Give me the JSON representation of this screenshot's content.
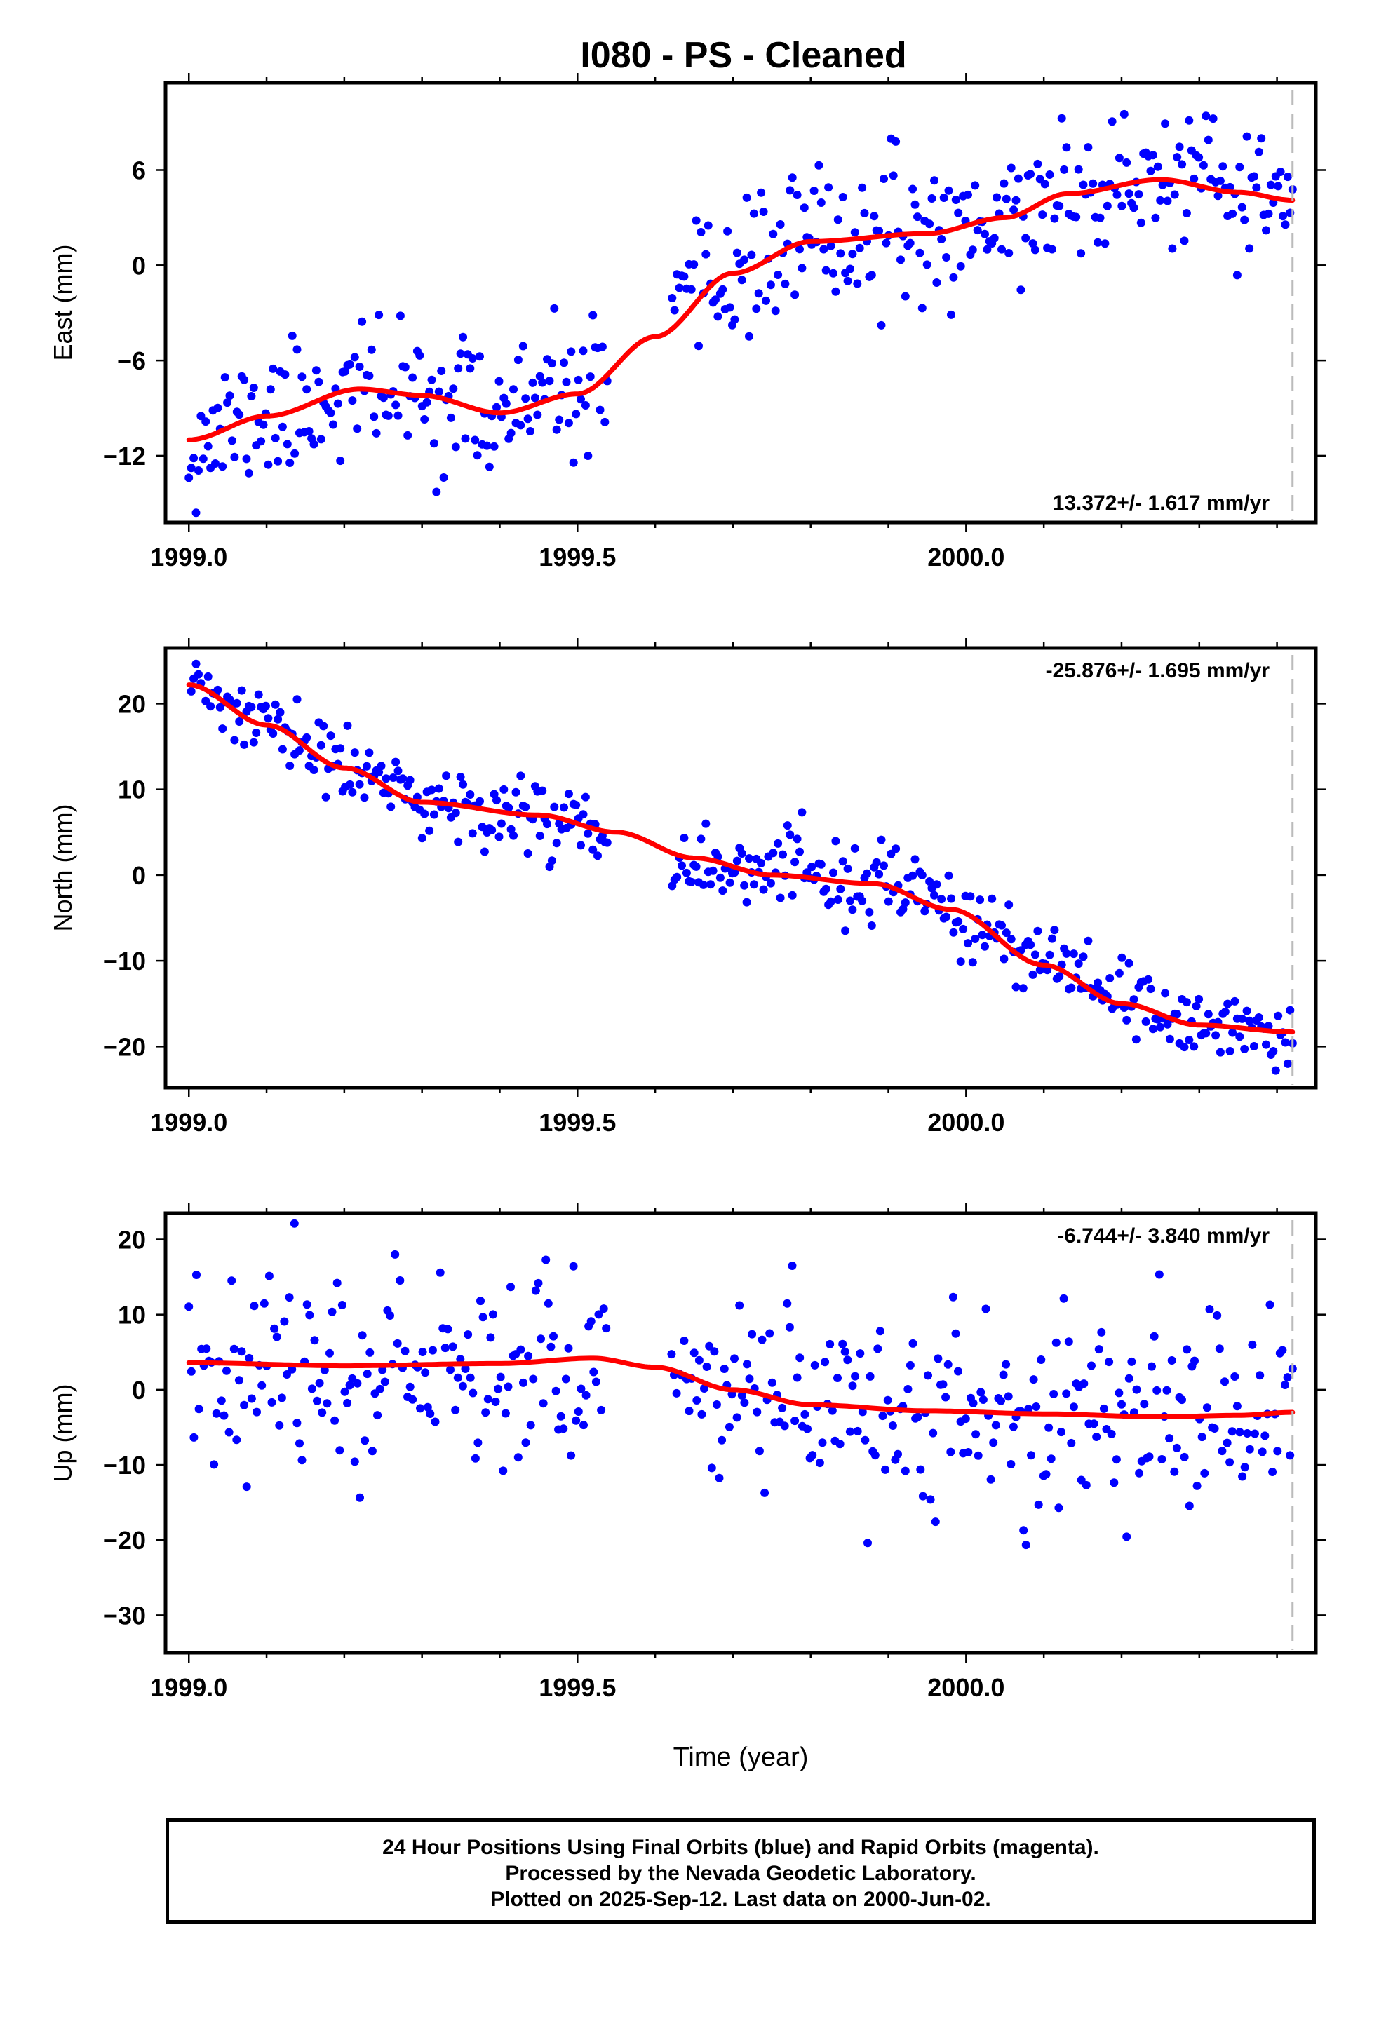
{
  "title": "I080  - PS - Cleaned",
  "x_axis_label": "Time (year)",
  "caption": [
    "24 Hour Positions Using Final Orbits (blue) and Rapid Orbits (magenta).",
    "Processed by the Nevada Geodetic Laboratory.",
    "Plotted on 2025-Sep-12. Last data on 2000-Jun-02."
  ],
  "colors": {
    "final_orbits": "#0000ff",
    "fit": "#ff0000",
    "last_data_marker": "#bbbbbb"
  },
  "chart_data": [
    {
      "type": "scatter",
      "ylabel": "East (mm)",
      "rate_label": "13.372+/- 1.617 mm/yr",
      "rate_position": "bottom-right",
      "xlim": [
        1998.97,
        2000.45
      ],
      "ylim": [
        -16.2,
        11.5
      ],
      "xticks": [
        1999.0,
        1999.5,
        2000.0
      ],
      "xtick_labels": [
        "1999.0",
        "1999.5",
        "2000.0"
      ],
      "yticks": [
        6,
        0,
        -6,
        -12
      ],
      "ytick_labels": [
        "6",
        "0",
        "−6",
        "−12"
      ],
      "last_data": 2000.42,
      "trend_knots": [
        [
          1999.0,
          -11.0
        ],
        [
          1999.1,
          -9.5
        ],
        [
          1999.22,
          -7.8
        ],
        [
          1999.3,
          -8.2
        ],
        [
          1999.4,
          -9.3
        ],
        [
          1999.5,
          -8.1
        ],
        [
          1999.6,
          -4.5
        ],
        [
          1999.7,
          -0.5
        ],
        [
          1999.8,
          1.5
        ],
        [
          1999.95,
          2.0
        ],
        [
          2000.05,
          3.0
        ],
        [
          2000.13,
          4.5
        ],
        [
          2000.25,
          5.4
        ],
        [
          2000.35,
          4.6
        ],
        [
          2000.42,
          4.1
        ]
      ],
      "scatter_sd": 2.1,
      "gaps": [
        [
          1999.54,
          1999.62
        ]
      ],
      "n_points": 460,
      "seed": 11
    },
    {
      "type": "scatter",
      "ylabel": "North (mm)",
      "rate_label": "-25.876+/- 1.695 mm/yr",
      "rate_position": "top-right",
      "xlim": [
        1998.97,
        2000.45
      ],
      "ylim": [
        -24.8,
        26.5
      ],
      "xticks": [
        1999.0,
        1999.5,
        2000.0
      ],
      "xtick_labels": [
        "1999.0",
        "1999.5",
        "2000.0"
      ],
      "yticks": [
        20,
        10,
        0,
        -10,
        -20
      ],
      "ytick_labels": [
        "20",
        "10",
        "0",
        "−10",
        "−20"
      ],
      "last_data": 2000.42,
      "trend_knots": [
        [
          1999.0,
          22.2
        ],
        [
          1999.1,
          17.5
        ],
        [
          1999.2,
          12.5
        ],
        [
          1999.3,
          8.5
        ],
        [
          1999.45,
          7.0
        ],
        [
          1999.55,
          5.0
        ],
        [
          1999.65,
          2.0
        ],
        [
          1999.75,
          0.0
        ],
        [
          1999.88,
          -1.0
        ],
        [
          1999.98,
          -4.0
        ],
        [
          2000.1,
          -10.5
        ],
        [
          2000.2,
          -15.0
        ],
        [
          2000.3,
          -17.5
        ],
        [
          2000.42,
          -18.3
        ]
      ],
      "scatter_sd": 2.3,
      "gaps": [
        [
          1999.54,
          1999.62
        ]
      ],
      "n_points": 460,
      "seed": 23
    },
    {
      "type": "scatter",
      "ylabel": "Up (mm)",
      "rate_label": "-6.744+/- 3.840 mm/yr",
      "rate_position": "top-right",
      "xlim": [
        1998.97,
        2000.45
      ],
      "ylim": [
        -35,
        23.5
      ],
      "xticks": [
        1999.0,
        1999.5,
        2000.0
      ],
      "xtick_labels": [
        "1999.0",
        "1999.5",
        "2000.0"
      ],
      "yticks": [
        20,
        10,
        0,
        -10,
        -20,
        -30
      ],
      "ytick_labels": [
        "20",
        "10",
        "0",
        "−10",
        "−20",
        "−30"
      ],
      "last_data": 2000.42,
      "trend_knots": [
        [
          1999.0,
          3.6
        ],
        [
          1999.2,
          3.2
        ],
        [
          1999.4,
          3.5
        ],
        [
          1999.52,
          4.2
        ],
        [
          1999.6,
          3.0
        ],
        [
          1999.7,
          0.0
        ],
        [
          1999.8,
          -2.0
        ],
        [
          1999.95,
          -2.8
        ],
        [
          2000.1,
          -3.2
        ],
        [
          2000.25,
          -3.6
        ],
        [
          2000.35,
          -3.4
        ],
        [
          2000.42,
          -3.0
        ]
      ],
      "scatter_sd": 6.5,
      "gaps": [
        [
          1999.54,
          1999.62
        ]
      ],
      "n_points": 440,
      "seed": 37
    }
  ]
}
